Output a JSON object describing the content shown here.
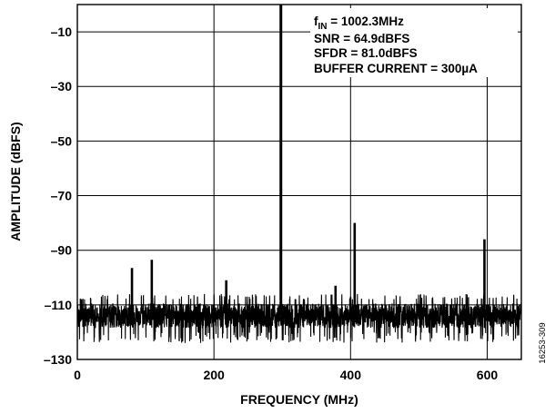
{
  "chart_data": {
    "type": "line",
    "title": "",
    "xlabel": "FREQUENCY (MHz)",
    "ylabel": "AMPLITUDE (dBFS)",
    "xlim": [
      0,
      650
    ],
    "ylim": [
      -130,
      0
    ],
    "x_ticks": [
      0,
      200,
      400,
      600
    ],
    "x_tick_labels": [
      "0",
      "200",
      "400",
      "600"
    ],
    "y_ticks": [
      -130,
      -110,
      -90,
      -70,
      -50,
      -30,
      -10
    ],
    "y_tick_labels": [
      "–130",
      "–110",
      "–90",
      "–70",
      "–50",
      "–30",
      "–10"
    ],
    "grid": true,
    "noise_floor": {
      "mean": -114,
      "min": -124,
      "max": -106
    },
    "spurs": [
      {
        "frequency": 80,
        "amplitude": -96.5
      },
      {
        "frequency": 109,
        "amplitude": -93.5
      },
      {
        "frequency": 218,
        "amplitude": -101
      },
      {
        "frequency": 298,
        "amplitude": 0
      },
      {
        "frequency": 378,
        "amplitude": -103
      },
      {
        "frequency": 406,
        "amplitude": -80
      },
      {
        "frequency": 596,
        "amplitude": -86
      }
    ],
    "annotations": [
      {
        "main": "f",
        "sub": "IN",
        "rest": " = 1002.3MHz"
      },
      {
        "main": "SNR = 64.9dBFS"
      },
      {
        "main": "SFDR = 81.0dBFS"
      },
      {
        "main": "BUFFER CURRENT = 300µA"
      }
    ]
  },
  "figure_id": "16253-309",
  "colors": {
    "trace": "#000000",
    "grid": "#000000",
    "background": "#ffffff"
  }
}
